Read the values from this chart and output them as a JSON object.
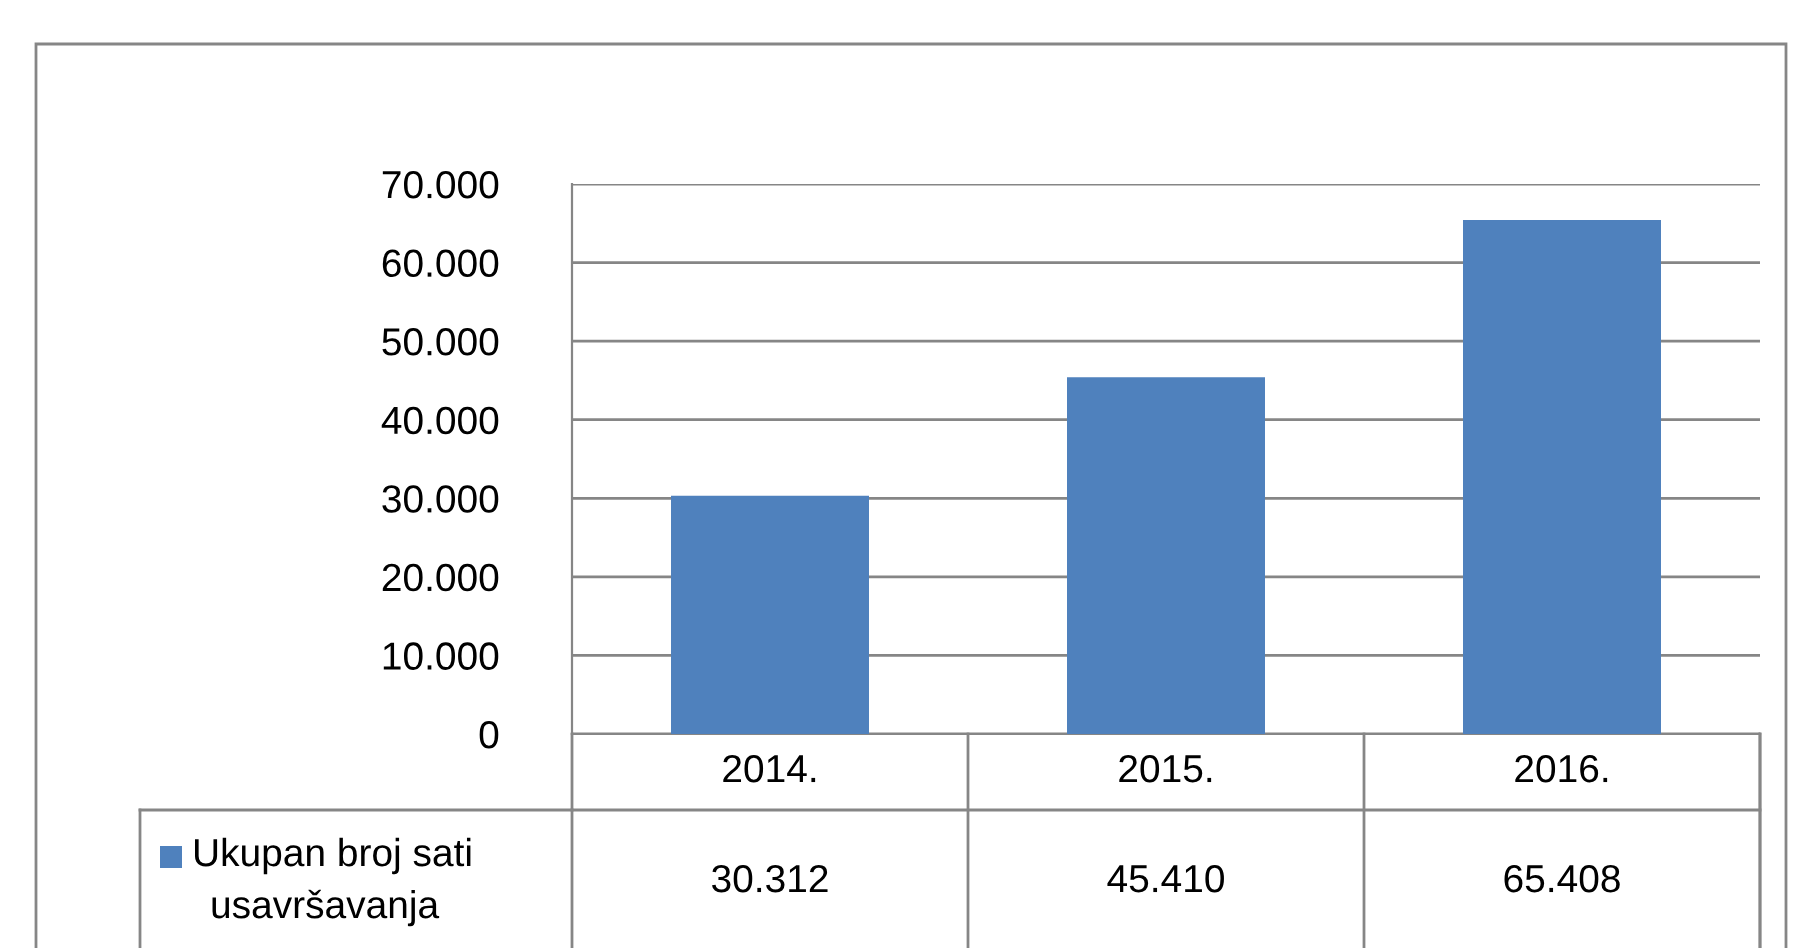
{
  "chart_data": {
    "type": "bar",
    "categories": [
      "2014.",
      "2015.",
      "2016."
    ],
    "series": [
      {
        "name": "Ukupan broj sati usavršavanja",
        "color": "#4f81bd",
        "values": [
          30312,
          45410,
          65408
        ],
        "value_labels": [
          "30.312",
          "45.410",
          "65.408"
        ]
      }
    ],
    "ylim": [
      0,
      70000
    ],
    "yticks": [
      {
        "value": 0,
        "label": "0"
      },
      {
        "value": 10000,
        "label": "10.000"
      },
      {
        "value": 20000,
        "label": "20.000"
      },
      {
        "value": 30000,
        "label": "30.000"
      },
      {
        "value": 40000,
        "label": "40.000"
      },
      {
        "value": 50000,
        "label": "50.000"
      },
      {
        "value": 60000,
        "label": "60.000"
      },
      {
        "value": 70000,
        "label": "70.000"
      }
    ],
    "grid": "y",
    "legend": "bottom"
  }
}
